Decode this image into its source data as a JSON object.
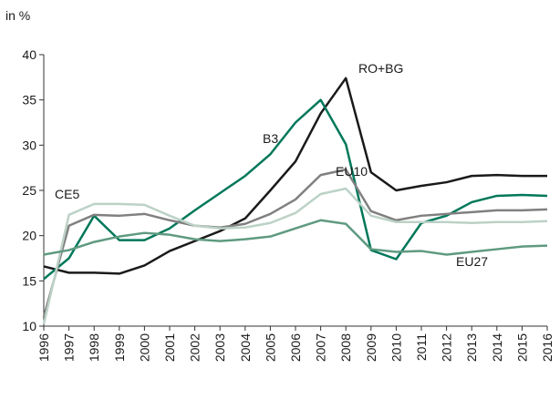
{
  "chart_data": {
    "type": "line",
    "y_axis_label": "in %",
    "categories": [
      "1996",
      "1997",
      "1998",
      "1999",
      "2000",
      "2001",
      "2002",
      "2003",
      "2004",
      "2005",
      "2006",
      "2007",
      "2008",
      "2009",
      "2010",
      "2011",
      "2012",
      "2013",
      "2014",
      "2015",
      "2016"
    ],
    "series": [
      {
        "name": "RO+BG",
        "color": "#1a1a1a",
        "values": [
          16.6,
          15.9,
          15.9,
          15.8,
          16.7,
          18.3,
          19.4,
          20.5,
          21.9,
          25.0,
          28.2,
          33.5,
          37.4,
          27.0,
          25.0,
          25.5,
          25.9,
          26.6,
          26.7,
          26.6,
          26.6
        ]
      },
      {
        "name": "B3",
        "color": "#00785a",
        "values": [
          15.2,
          17.5,
          22.2,
          19.5,
          19.5,
          20.8,
          22.8,
          24.7,
          26.6,
          29.0,
          32.5,
          35.0,
          30.1,
          18.4,
          17.4,
          21.4,
          22.2,
          23.7,
          24.4,
          24.5,
          24.4
        ]
      },
      {
        "name": "EU10",
        "color": "#808080",
        "values": [
          11.0,
          21.1,
          22.3,
          22.2,
          22.4,
          21.7,
          21.1,
          20.9,
          21.3,
          22.4,
          24.0,
          26.7,
          27.3,
          22.7,
          21.7,
          22.2,
          22.4,
          22.6,
          22.8,
          22.8,
          22.9
        ]
      },
      {
        "name": "CE5",
        "color": "#bcd2c7",
        "values": [
          10.2,
          22.3,
          23.5,
          23.5,
          23.4,
          22.2,
          21.1,
          20.8,
          20.9,
          21.4,
          22.5,
          24.6,
          25.2,
          22.2,
          21.5,
          21.5,
          21.5,
          21.4,
          21.5,
          21.5,
          21.6
        ]
      },
      {
        "name": "EU27",
        "color": "#5f9a80",
        "values": [
          17.9,
          18.4,
          19.3,
          19.9,
          20.3,
          20.1,
          19.6,
          19.4,
          19.6,
          19.9,
          20.8,
          21.7,
          21.3,
          18.5,
          18.2,
          18.3,
          17.9,
          18.2,
          18.5,
          18.8,
          18.9
        ]
      }
    ],
    "ylim": [
      10,
      40
    ],
    "yticks": [
      10,
      15,
      20,
      25,
      30,
      35,
      40
    ],
    "grid": false
  }
}
